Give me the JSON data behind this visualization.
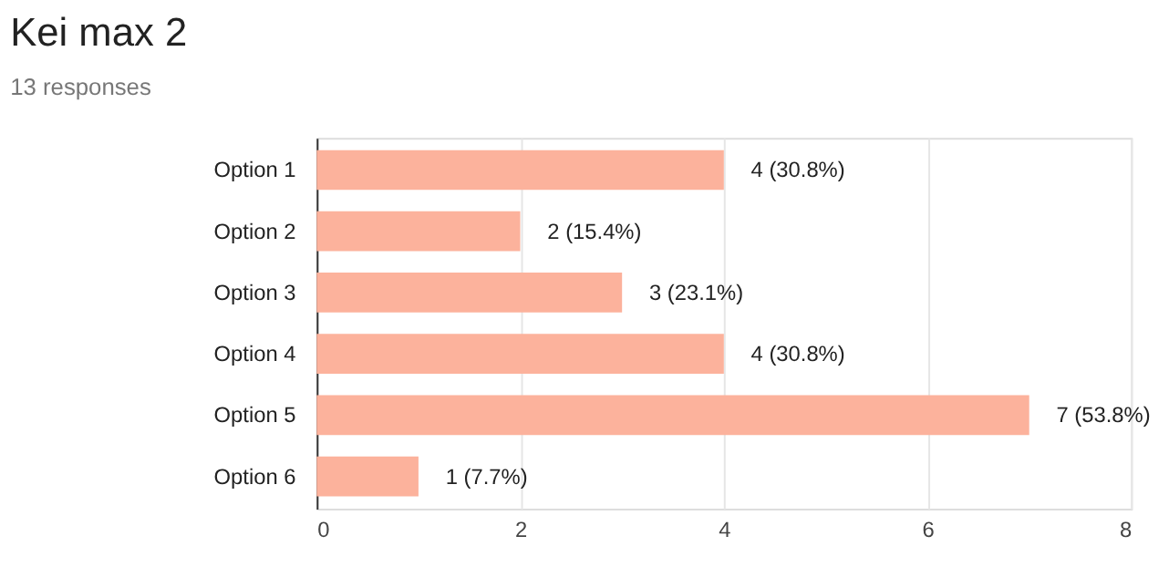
{
  "chart_data": {
    "type": "bar",
    "orientation": "horizontal",
    "title": "Kei max 2",
    "subtitle": "13 responses",
    "categories": [
      "Option 1",
      "Option 2",
      "Option 3",
      "Option 4",
      "Option 5",
      "Option 6"
    ],
    "values": [
      4,
      2,
      3,
      4,
      7,
      1
    ],
    "value_labels": [
      "4 (30.8%)",
      "2 (15.4%)",
      "3 (23.1%)",
      "4 (30.8%)",
      "7 (53.8%)",
      "1 (7.7%)"
    ],
    "color": "#fcb29c",
    "xlim": [
      0,
      8
    ],
    "xticks": [
      0,
      2,
      4,
      6,
      8
    ],
    "grid": "x"
  }
}
